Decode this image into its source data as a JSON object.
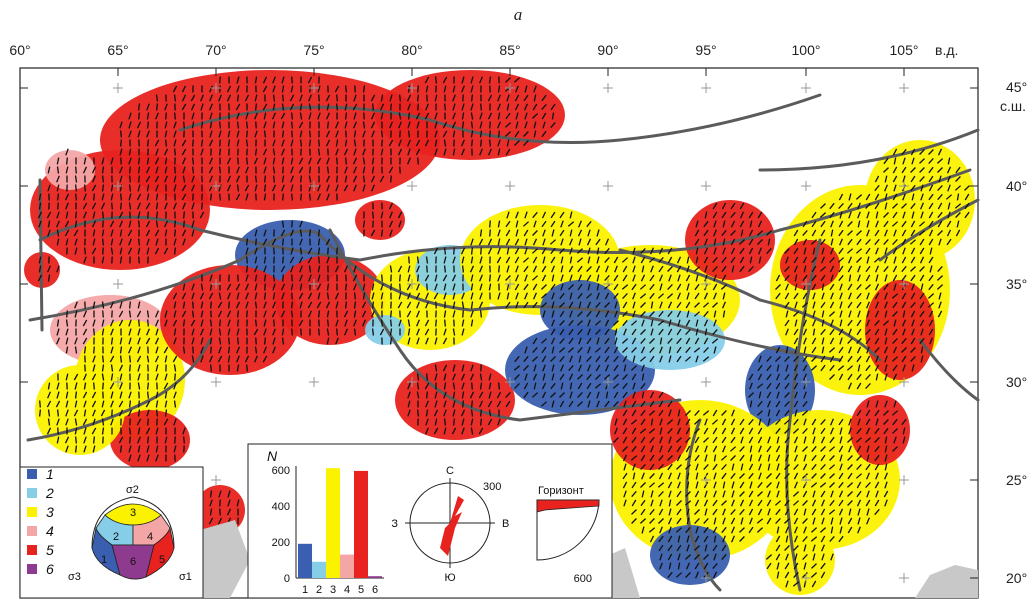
{
  "figure": {
    "panel_label": "a",
    "lon_ticks": [
      "60°",
      "65°",
      "70°",
      "75°",
      "80°",
      "85°",
      "90°",
      "95°",
      "100°",
      "105°"
    ],
    "lon_suffix": "в.д.",
    "lat_ticks": [
      "45°",
      "40°",
      "35°",
      "30°",
      "25°",
      "20°"
    ],
    "lat_suffix": "с.ш."
  },
  "colors": {
    "class1": "#3a5fb0",
    "class2": "#86cde8",
    "class3": "#fbf200",
    "class4": "#f4a6a6",
    "class5": "#e8231f",
    "class6": "#8e3b8f",
    "faults": "#5b5b5b",
    "sea": "#c8c8c8"
  },
  "legend": {
    "items": [
      {
        "label": "1",
        "color": "#3a5fb0"
      },
      {
        "label": "2",
        "color": "#86cde8"
      },
      {
        "label": "3",
        "color": "#fbf200"
      },
      {
        "label": "4",
        "color": "#f4a6a6"
      },
      {
        "label": "5",
        "color": "#e8231f"
      },
      {
        "label": "6",
        "color": "#8e3b8f"
      }
    ],
    "triangle_axes": {
      "top": "σ2",
      "left": "σ3",
      "right": "σ1"
    }
  },
  "inset": {
    "histogram": {
      "ylabel": "N",
      "y_ticks": [
        "600",
        "400",
        "200",
        "0"
      ]
    },
    "rose": {
      "north": "С",
      "south": "Ю",
      "west": "З",
      "east": "В",
      "scale": "300"
    },
    "horizon": {
      "title": "Горизонт",
      "scale": "600"
    }
  },
  "chart_data": {
    "type": "bar",
    "categories": [
      "1",
      "2",
      "3",
      "4",
      "5",
      "6"
    ],
    "values": [
      190,
      90,
      610,
      130,
      595,
      10
    ],
    "colors": [
      "#3a5fb0",
      "#86cde8",
      "#fbf200",
      "#f4a6a6",
      "#e8231f",
      "#8e3b8f"
    ],
    "ylabel": "N",
    "ylim": [
      0,
      650
    ]
  }
}
